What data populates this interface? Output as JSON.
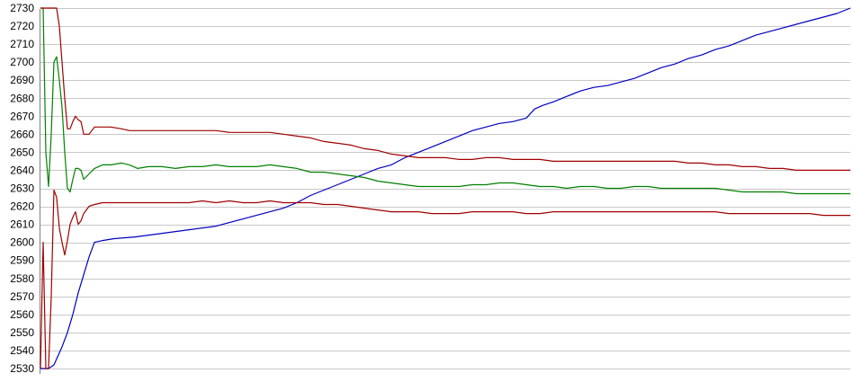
{
  "chart_data": {
    "type": "line",
    "title": "",
    "xlabel": "",
    "ylabel": "",
    "ylim": [
      2530,
      2730
    ],
    "xlim": [
      0,
      300
    ],
    "y_ticks": [
      2530,
      2540,
      2550,
      2560,
      2570,
      2580,
      2590,
      2600,
      2610,
      2620,
      2630,
      2640,
      2650,
      2660,
      2670,
      2680,
      2690,
      2700,
      2710,
      2720,
      2730
    ],
    "grid": true,
    "legend": "none",
    "series": [
      {
        "color": "#0000c0",
        "points": [
          [
            0,
            2530
          ],
          [
            3,
            2530
          ],
          [
            5,
            2532
          ],
          [
            8,
            2542
          ],
          [
            10,
            2550
          ],
          [
            12,
            2560
          ],
          [
            14,
            2572
          ],
          [
            16,
            2582
          ],
          [
            18,
            2592
          ],
          [
            20,
            2600
          ],
          [
            23,
            2601
          ],
          [
            27,
            2602
          ],
          [
            35,
            2603
          ],
          [
            45,
            2605
          ],
          [
            55,
            2607
          ],
          [
            65,
            2609
          ],
          [
            75,
            2613
          ],
          [
            85,
            2617
          ],
          [
            90,
            2619
          ],
          [
            95,
            2622
          ],
          [
            100,
            2626
          ],
          [
            105,
            2629
          ],
          [
            110,
            2632
          ],
          [
            115,
            2635
          ],
          [
            120,
            2638
          ],
          [
            125,
            2641
          ],
          [
            130,
            2643
          ],
          [
            135,
            2647
          ],
          [
            140,
            2650
          ],
          [
            145,
            2653
          ],
          [
            150,
            2656
          ],
          [
            155,
            2659
          ],
          [
            160,
            2662
          ],
          [
            165,
            2664
          ],
          [
            170,
            2666
          ],
          [
            175,
            2667
          ],
          [
            180,
            2669
          ],
          [
            183,
            2674
          ],
          [
            186,
            2676
          ],
          [
            190,
            2678
          ],
          [
            195,
            2681
          ],
          [
            200,
            2684
          ],
          [
            205,
            2686
          ],
          [
            210,
            2687
          ],
          [
            215,
            2689
          ],
          [
            220,
            2691
          ],
          [
            225,
            2694
          ],
          [
            230,
            2697
          ],
          [
            235,
            2699
          ],
          [
            240,
            2702
          ],
          [
            245,
            2704
          ],
          [
            250,
            2707
          ],
          [
            255,
            2709
          ],
          [
            260,
            2712
          ],
          [
            265,
            2715
          ],
          [
            270,
            2717
          ],
          [
            275,
            2719
          ],
          [
            280,
            2721
          ],
          [
            285,
            2723
          ],
          [
            290,
            2725
          ],
          [
            295,
            2727
          ],
          [
            300,
            2730
          ]
        ]
      },
      {
        "color": "#008000",
        "points": [
          [
            0,
            2730
          ],
          [
            1,
            2730
          ],
          [
            2,
            2650
          ],
          [
            3,
            2631
          ],
          [
            4,
            2660
          ],
          [
            5,
            2700
          ],
          [
            6,
            2703
          ],
          [
            7,
            2690
          ],
          [
            8,
            2675
          ],
          [
            9,
            2650
          ],
          [
            10,
            2630
          ],
          [
            11,
            2628
          ],
          [
            12,
            2635
          ],
          [
            13,
            2641
          ],
          [
            14,
            2641
          ],
          [
            15,
            2640
          ],
          [
            16,
            2635
          ],
          [
            18,
            2638
          ],
          [
            20,
            2641
          ],
          [
            23,
            2643
          ],
          [
            26,
            2643
          ],
          [
            30,
            2644
          ],
          [
            33,
            2643
          ],
          [
            36,
            2641
          ],
          [
            40,
            2642
          ],
          [
            45,
            2642
          ],
          [
            50,
            2641
          ],
          [
            55,
            2642
          ],
          [
            60,
            2642
          ],
          [
            65,
            2643
          ],
          [
            70,
            2642
          ],
          [
            75,
            2642
          ],
          [
            80,
            2642
          ],
          [
            85,
            2643
          ],
          [
            90,
            2642
          ],
          [
            95,
            2641
          ],
          [
            100,
            2639
          ],
          [
            105,
            2639
          ],
          [
            110,
            2638
          ],
          [
            115,
            2637
          ],
          [
            120,
            2636
          ],
          [
            125,
            2634
          ],
          [
            130,
            2633
          ],
          [
            135,
            2632
          ],
          [
            140,
            2631
          ],
          [
            145,
            2631
          ],
          [
            150,
            2631
          ],
          [
            155,
            2631
          ],
          [
            160,
            2632
          ],
          [
            165,
            2632
          ],
          [
            170,
            2633
          ],
          [
            175,
            2633
          ],
          [
            180,
            2632
          ],
          [
            185,
            2631
          ],
          [
            190,
            2631
          ],
          [
            195,
            2630
          ],
          [
            200,
            2631
          ],
          [
            205,
            2631
          ],
          [
            210,
            2630
          ],
          [
            215,
            2630
          ],
          [
            220,
            2631
          ],
          [
            225,
            2631
          ],
          [
            230,
            2630
          ],
          [
            235,
            2630
          ],
          [
            240,
            2630
          ],
          [
            245,
            2630
          ],
          [
            250,
            2630
          ],
          [
            255,
            2629
          ],
          [
            260,
            2628
          ],
          [
            265,
            2628
          ],
          [
            270,
            2628
          ],
          [
            275,
            2628
          ],
          [
            280,
            2627
          ],
          [
            285,
            2627
          ],
          [
            290,
            2627
          ],
          [
            295,
            2627
          ],
          [
            300,
            2627
          ]
        ]
      },
      {
        "color": "#a00000",
        "points": [
          [
            0,
            2730
          ],
          [
            2,
            2730
          ],
          [
            4,
            2730
          ],
          [
            6,
            2730
          ],
          [
            7,
            2720
          ],
          [
            8,
            2700
          ],
          [
            9,
            2680
          ],
          [
            10,
            2663
          ],
          [
            11,
            2663
          ],
          [
            12,
            2667
          ],
          [
            13,
            2670
          ],
          [
            14,
            2668
          ],
          [
            15,
            2667
          ],
          [
            16,
            2660
          ],
          [
            17,
            2660
          ],
          [
            18,
            2660
          ],
          [
            20,
            2664
          ],
          [
            23,
            2664
          ],
          [
            26,
            2664
          ],
          [
            30,
            2663
          ],
          [
            33,
            2662
          ],
          [
            36,
            2662
          ],
          [
            40,
            2662
          ],
          [
            45,
            2662
          ],
          [
            50,
            2662
          ],
          [
            55,
            2662
          ],
          [
            60,
            2662
          ],
          [
            65,
            2662
          ],
          [
            70,
            2661
          ],
          [
            75,
            2661
          ],
          [
            80,
            2661
          ],
          [
            85,
            2661
          ],
          [
            90,
            2660
          ],
          [
            95,
            2659
          ],
          [
            100,
            2658
          ],
          [
            105,
            2656
          ],
          [
            110,
            2655
          ],
          [
            115,
            2654
          ],
          [
            120,
            2652
          ],
          [
            125,
            2651
          ],
          [
            130,
            2649
          ],
          [
            135,
            2648
          ],
          [
            140,
            2647
          ],
          [
            145,
            2647
          ],
          [
            150,
            2647
          ],
          [
            155,
            2646
          ],
          [
            160,
            2646
          ],
          [
            165,
            2647
          ],
          [
            170,
            2647
          ],
          [
            175,
            2646
          ],
          [
            180,
            2646
          ],
          [
            185,
            2646
          ],
          [
            190,
            2645
          ],
          [
            195,
            2645
          ],
          [
            200,
            2645
          ],
          [
            205,
            2645
          ],
          [
            210,
            2645
          ],
          [
            215,
            2645
          ],
          [
            220,
            2645
          ],
          [
            225,
            2645
          ],
          [
            230,
            2645
          ],
          [
            235,
            2645
          ],
          [
            240,
            2644
          ],
          [
            245,
            2644
          ],
          [
            250,
            2643
          ],
          [
            255,
            2643
          ],
          [
            260,
            2642
          ],
          [
            265,
            2642
          ],
          [
            270,
            2641
          ],
          [
            275,
            2641
          ],
          [
            280,
            2640
          ],
          [
            285,
            2640
          ],
          [
            290,
            2640
          ],
          [
            295,
            2640
          ],
          [
            300,
            2640
          ]
        ]
      },
      {
        "color": "#a00000",
        "points": [
          [
            0,
            2530
          ],
          [
            1,
            2600
          ],
          [
            2,
            2530
          ],
          [
            3,
            2530
          ],
          [
            4,
            2570
          ],
          [
            5,
            2629
          ],
          [
            6,
            2625
          ],
          [
            7,
            2608
          ],
          [
            8,
            2600
          ],
          [
            9,
            2593
          ],
          [
            10,
            2601
          ],
          [
            11,
            2610
          ],
          [
            12,
            2614
          ],
          [
            13,
            2617
          ],
          [
            14,
            2610
          ],
          [
            15,
            2612
          ],
          [
            16,
            2616
          ],
          [
            18,
            2620
          ],
          [
            20,
            2621
          ],
          [
            23,
            2622
          ],
          [
            26,
            2622
          ],
          [
            30,
            2622
          ],
          [
            35,
            2622
          ],
          [
            40,
            2622
          ],
          [
            45,
            2622
          ],
          [
            50,
            2622
          ],
          [
            55,
            2622
          ],
          [
            60,
            2623
          ],
          [
            65,
            2622
          ],
          [
            70,
            2623
          ],
          [
            75,
            2622
          ],
          [
            80,
            2622
          ],
          [
            85,
            2623
          ],
          [
            90,
            2622
          ],
          [
            95,
            2622
          ],
          [
            100,
            2622
          ],
          [
            105,
            2621
          ],
          [
            110,
            2621
          ],
          [
            115,
            2620
          ],
          [
            120,
            2619
          ],
          [
            125,
            2618
          ],
          [
            130,
            2617
          ],
          [
            135,
            2617
          ],
          [
            140,
            2617
          ],
          [
            145,
            2616
          ],
          [
            150,
            2616
          ],
          [
            155,
            2616
          ],
          [
            160,
            2617
          ],
          [
            165,
            2617
          ],
          [
            170,
            2617
          ],
          [
            175,
            2617
          ],
          [
            180,
            2616
          ],
          [
            185,
            2616
          ],
          [
            190,
            2617
          ],
          [
            195,
            2617
          ],
          [
            200,
            2617
          ],
          [
            205,
            2617
          ],
          [
            210,
            2617
          ],
          [
            215,
            2617
          ],
          [
            220,
            2617
          ],
          [
            225,
            2617
          ],
          [
            230,
            2617
          ],
          [
            235,
            2617
          ],
          [
            240,
            2617
          ],
          [
            245,
            2617
          ],
          [
            250,
            2617
          ],
          [
            255,
            2616
          ],
          [
            260,
            2616
          ],
          [
            265,
            2616
          ],
          [
            270,
            2616
          ],
          [
            275,
            2616
          ],
          [
            280,
            2616
          ],
          [
            285,
            2616
          ],
          [
            290,
            2615
          ],
          [
            295,
            2615
          ],
          [
            300,
            2615
          ]
        ]
      }
    ]
  }
}
